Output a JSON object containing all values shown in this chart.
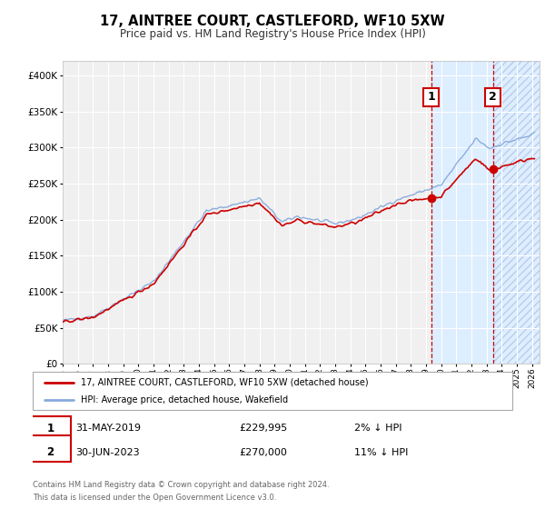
{
  "title": "17, AINTREE COURT, CASTLEFORD, WF10 5XW",
  "subtitle": "Price paid vs. HM Land Registry's House Price Index (HPI)",
  "legend_line1": "17, AINTREE COURT, CASTLEFORD, WF10 5XW (detached house)",
  "legend_line2": "HPI: Average price, detached house, Wakefield",
  "annotation1_date": "31-MAY-2019",
  "annotation1_price": 229995,
  "annotation1_price_str": "£229,995",
  "annotation1_pct": "2% ↓ HPI",
  "annotation2_date": "30-JUN-2023",
  "annotation2_price": 270000,
  "annotation2_price_str": "£270,000",
  "annotation2_pct": "11% ↓ HPI",
  "footer1": "Contains HM Land Registry data © Crown copyright and database right 2024.",
  "footer2": "This data is licensed under the Open Government Licence v3.0.",
  "red_color": "#cc0000",
  "blue_color": "#88aadd",
  "shaded_color": "#ddeeff",
  "hatch_color": "#bbccee",
  "background_color": "#f0f0f0",
  "grid_color": "#ffffff",
  "ylim": [
    0,
    420000
  ],
  "xlim_start": 1995.0,
  "xlim_end": 2026.5,
  "sale1_year": 2019,
  "sale1_month": 4,
  "sale1_y": 229995,
  "sale2_year": 2023,
  "sale2_month": 5,
  "sale2_y": 270000
}
